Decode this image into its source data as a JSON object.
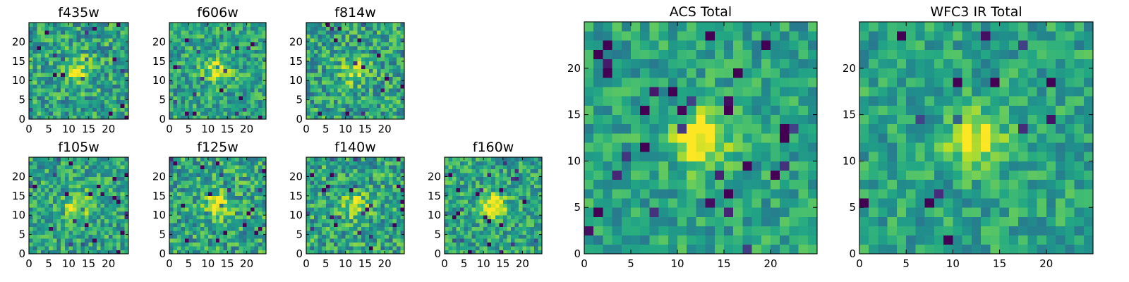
{
  "chart_data": [
    {
      "type": "heatmap",
      "title": "f435w",
      "x_ticks": [
        "0",
        "5",
        "10",
        "15",
        "20"
      ],
      "y_ticks": [
        "0",
        "5",
        "10",
        "15",
        "20"
      ],
      "xlim": [
        0,
        25
      ],
      "ylim": [
        0,
        25
      ],
      "grid_size": 25,
      "peak": [
        12,
        12
      ],
      "peak_strength": 0.35,
      "noise": 0.5,
      "colormap": "viridis"
    },
    {
      "type": "heatmap",
      "title": "f606w",
      "x_ticks": [
        "0",
        "5",
        "10",
        "15",
        "20"
      ],
      "y_ticks": [
        "0",
        "5",
        "10",
        "15",
        "20"
      ],
      "xlim": [
        0,
        25
      ],
      "ylim": [
        0,
        25
      ],
      "grid_size": 25,
      "peak": [
        12,
        12
      ],
      "peak_strength": 0.4,
      "noise": 0.45,
      "colormap": "viridis"
    },
    {
      "type": "heatmap",
      "title": "f814w",
      "x_ticks": [
        "0",
        "5",
        "10",
        "15",
        "20"
      ],
      "y_ticks": [
        "0",
        "5",
        "10",
        "15",
        "20"
      ],
      "xlim": [
        0,
        25
      ],
      "ylim": [
        0,
        25
      ],
      "grid_size": 25,
      "peak": [
        12,
        12
      ],
      "peak_strength": 0.35,
      "noise": 0.5,
      "colormap": "viridis"
    },
    {
      "type": "heatmap",
      "title": "f105w",
      "x_ticks": [
        "0",
        "5",
        "10",
        "15",
        "20"
      ],
      "y_ticks": [
        "0",
        "5",
        "10",
        "15",
        "20"
      ],
      "xlim": [
        0,
        25
      ],
      "ylim": [
        0,
        25
      ],
      "grid_size": 25,
      "peak": [
        12,
        12
      ],
      "peak_strength": 0.4,
      "noise": 0.45,
      "colormap": "viridis"
    },
    {
      "type": "heatmap",
      "title": "f125w",
      "x_ticks": [
        "0",
        "5",
        "10",
        "15",
        "20"
      ],
      "y_ticks": [
        "0",
        "5",
        "10",
        "15",
        "20"
      ],
      "xlim": [
        0,
        25
      ],
      "ylim": [
        0,
        25
      ],
      "grid_size": 25,
      "peak": [
        12,
        12
      ],
      "peak_strength": 0.4,
      "noise": 0.5,
      "colormap": "viridis"
    },
    {
      "type": "heatmap",
      "title": "f140w",
      "x_ticks": [
        "0",
        "5",
        "10",
        "15",
        "20"
      ],
      "y_ticks": [
        "0",
        "5",
        "10",
        "15",
        "20"
      ],
      "xlim": [
        0,
        25
      ],
      "ylim": [
        0,
        25
      ],
      "grid_size": 25,
      "peak": [
        12,
        12
      ],
      "peak_strength": 0.35,
      "noise": 0.5,
      "colormap": "viridis"
    },
    {
      "type": "heatmap",
      "title": "f160w",
      "x_ticks": [
        "0",
        "5",
        "10",
        "15",
        "20"
      ],
      "y_ticks": [
        "0",
        "5",
        "10",
        "15",
        "20"
      ],
      "xlim": [
        0,
        25
      ],
      "ylim": [
        0,
        25
      ],
      "grid_size": 25,
      "peak": [
        12,
        12
      ],
      "peak_strength": 0.45,
      "noise": 0.45,
      "colormap": "viridis"
    },
    {
      "type": "heatmap",
      "title": "ACS Total",
      "x_ticks": [
        "0",
        "5",
        "10",
        "15",
        "20"
      ],
      "y_ticks": [
        "0",
        "5",
        "10",
        "15",
        "20"
      ],
      "xlim": [
        0,
        25
      ],
      "ylim": [
        0,
        25
      ],
      "grid_size": 25,
      "peak": [
        12,
        12
      ],
      "peak_strength": 0.45,
      "noise": 0.35,
      "colormap": "viridis"
    },
    {
      "type": "heatmap",
      "title": "WFC3 IR Total",
      "x_ticks": [
        "0",
        "5",
        "10",
        "15",
        "20"
      ],
      "y_ticks": [
        "0",
        "5",
        "10",
        "15",
        "20"
      ],
      "xlim": [
        0,
        25
      ],
      "ylim": [
        0,
        25
      ],
      "grid_size": 25,
      "peak": [
        12,
        12
      ],
      "peak_strength": 0.4,
      "noise": 0.35,
      "colormap": "viridis"
    }
  ]
}
